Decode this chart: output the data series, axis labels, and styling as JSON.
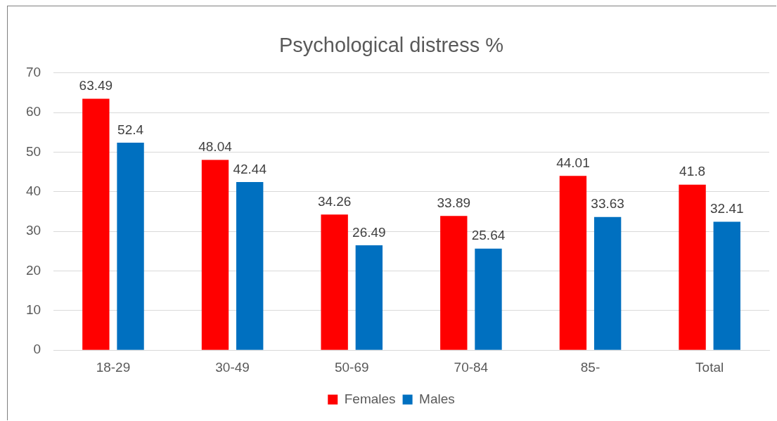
{
  "chart_data": {
    "type": "bar",
    "title": "Psychological distress %",
    "categories": [
      "18-29",
      "30-49",
      "50-69",
      "70-84",
      "85-",
      "Total"
    ],
    "series": [
      {
        "name": "Females",
        "color": "#ff0000",
        "values": [
          63.49,
          48.04,
          34.26,
          33.89,
          44.01,
          41.8
        ]
      },
      {
        "name": "Males",
        "color": "#0070c0",
        "values": [
          52.4,
          42.44,
          26.49,
          25.64,
          33.63,
          32.41
        ]
      }
    ],
    "ylim": [
      0,
      70
    ],
    "yticks": [
      0,
      10,
      20,
      30,
      40,
      50,
      60,
      70
    ],
    "grid": "y",
    "legend": "bottom",
    "data_labels": true
  }
}
